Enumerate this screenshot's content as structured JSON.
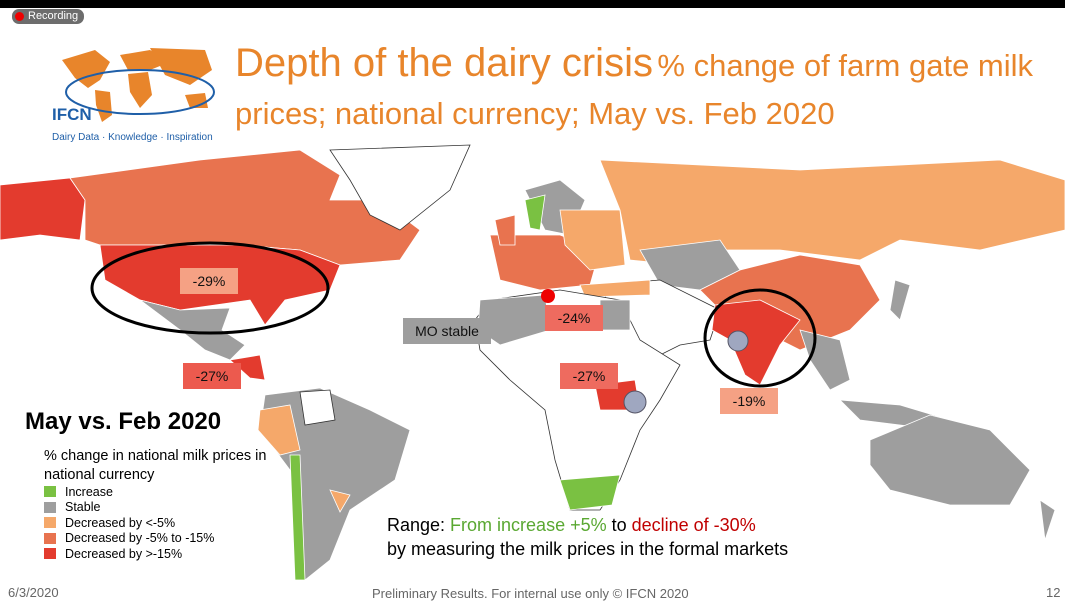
{
  "recording": "Recording",
  "logo": {
    "name": "IFCN",
    "tagline": "Dairy Data · Knowledge · Inspiration"
  },
  "header": {
    "title": "Depth of the dairy crisis",
    "subtitle": "% change of farm gate milk prices; national currency; May vs. Feb 2020"
  },
  "map_labels": [
    {
      "text": "-29%",
      "color": "#f5a184"
    },
    {
      "text": "-27%",
      "color": "#ec5a4e"
    },
    {
      "text": "MO stable",
      "color": "#9e9e9e"
    },
    {
      "text": "-24%",
      "color": "#ee6b5f"
    },
    {
      "text": "-27%",
      "color": "#ee6b5f"
    },
    {
      "text": "-19%",
      "color": "#f5a184"
    }
  ],
  "legend": {
    "title": "May vs. Feb 2020",
    "caption": "% change in national milk prices in national currency",
    "items": [
      {
        "label": "Increase",
        "color": "#7ac142"
      },
      {
        "label": "Stable",
        "color": "#9e9e9e"
      },
      {
        "label": "Decreased by <-5%",
        "color": "#f5a86a"
      },
      {
        "label": "Decreased by -5% to -15%",
        "color": "#e8734f"
      },
      {
        "label": "Decreased by >-15%",
        "color": "#e33b2e"
      }
    ]
  },
  "range": {
    "lead": "Range:",
    "increase": "From increase +5%",
    "to": "to",
    "decline": "decline of -30%",
    "note": "by measuring the milk prices in the formal markets"
  },
  "footer": {
    "date": "6/3/2020",
    "notice": "Preliminary Results. For internal use only © IFCN 2020",
    "page": "12"
  }
}
